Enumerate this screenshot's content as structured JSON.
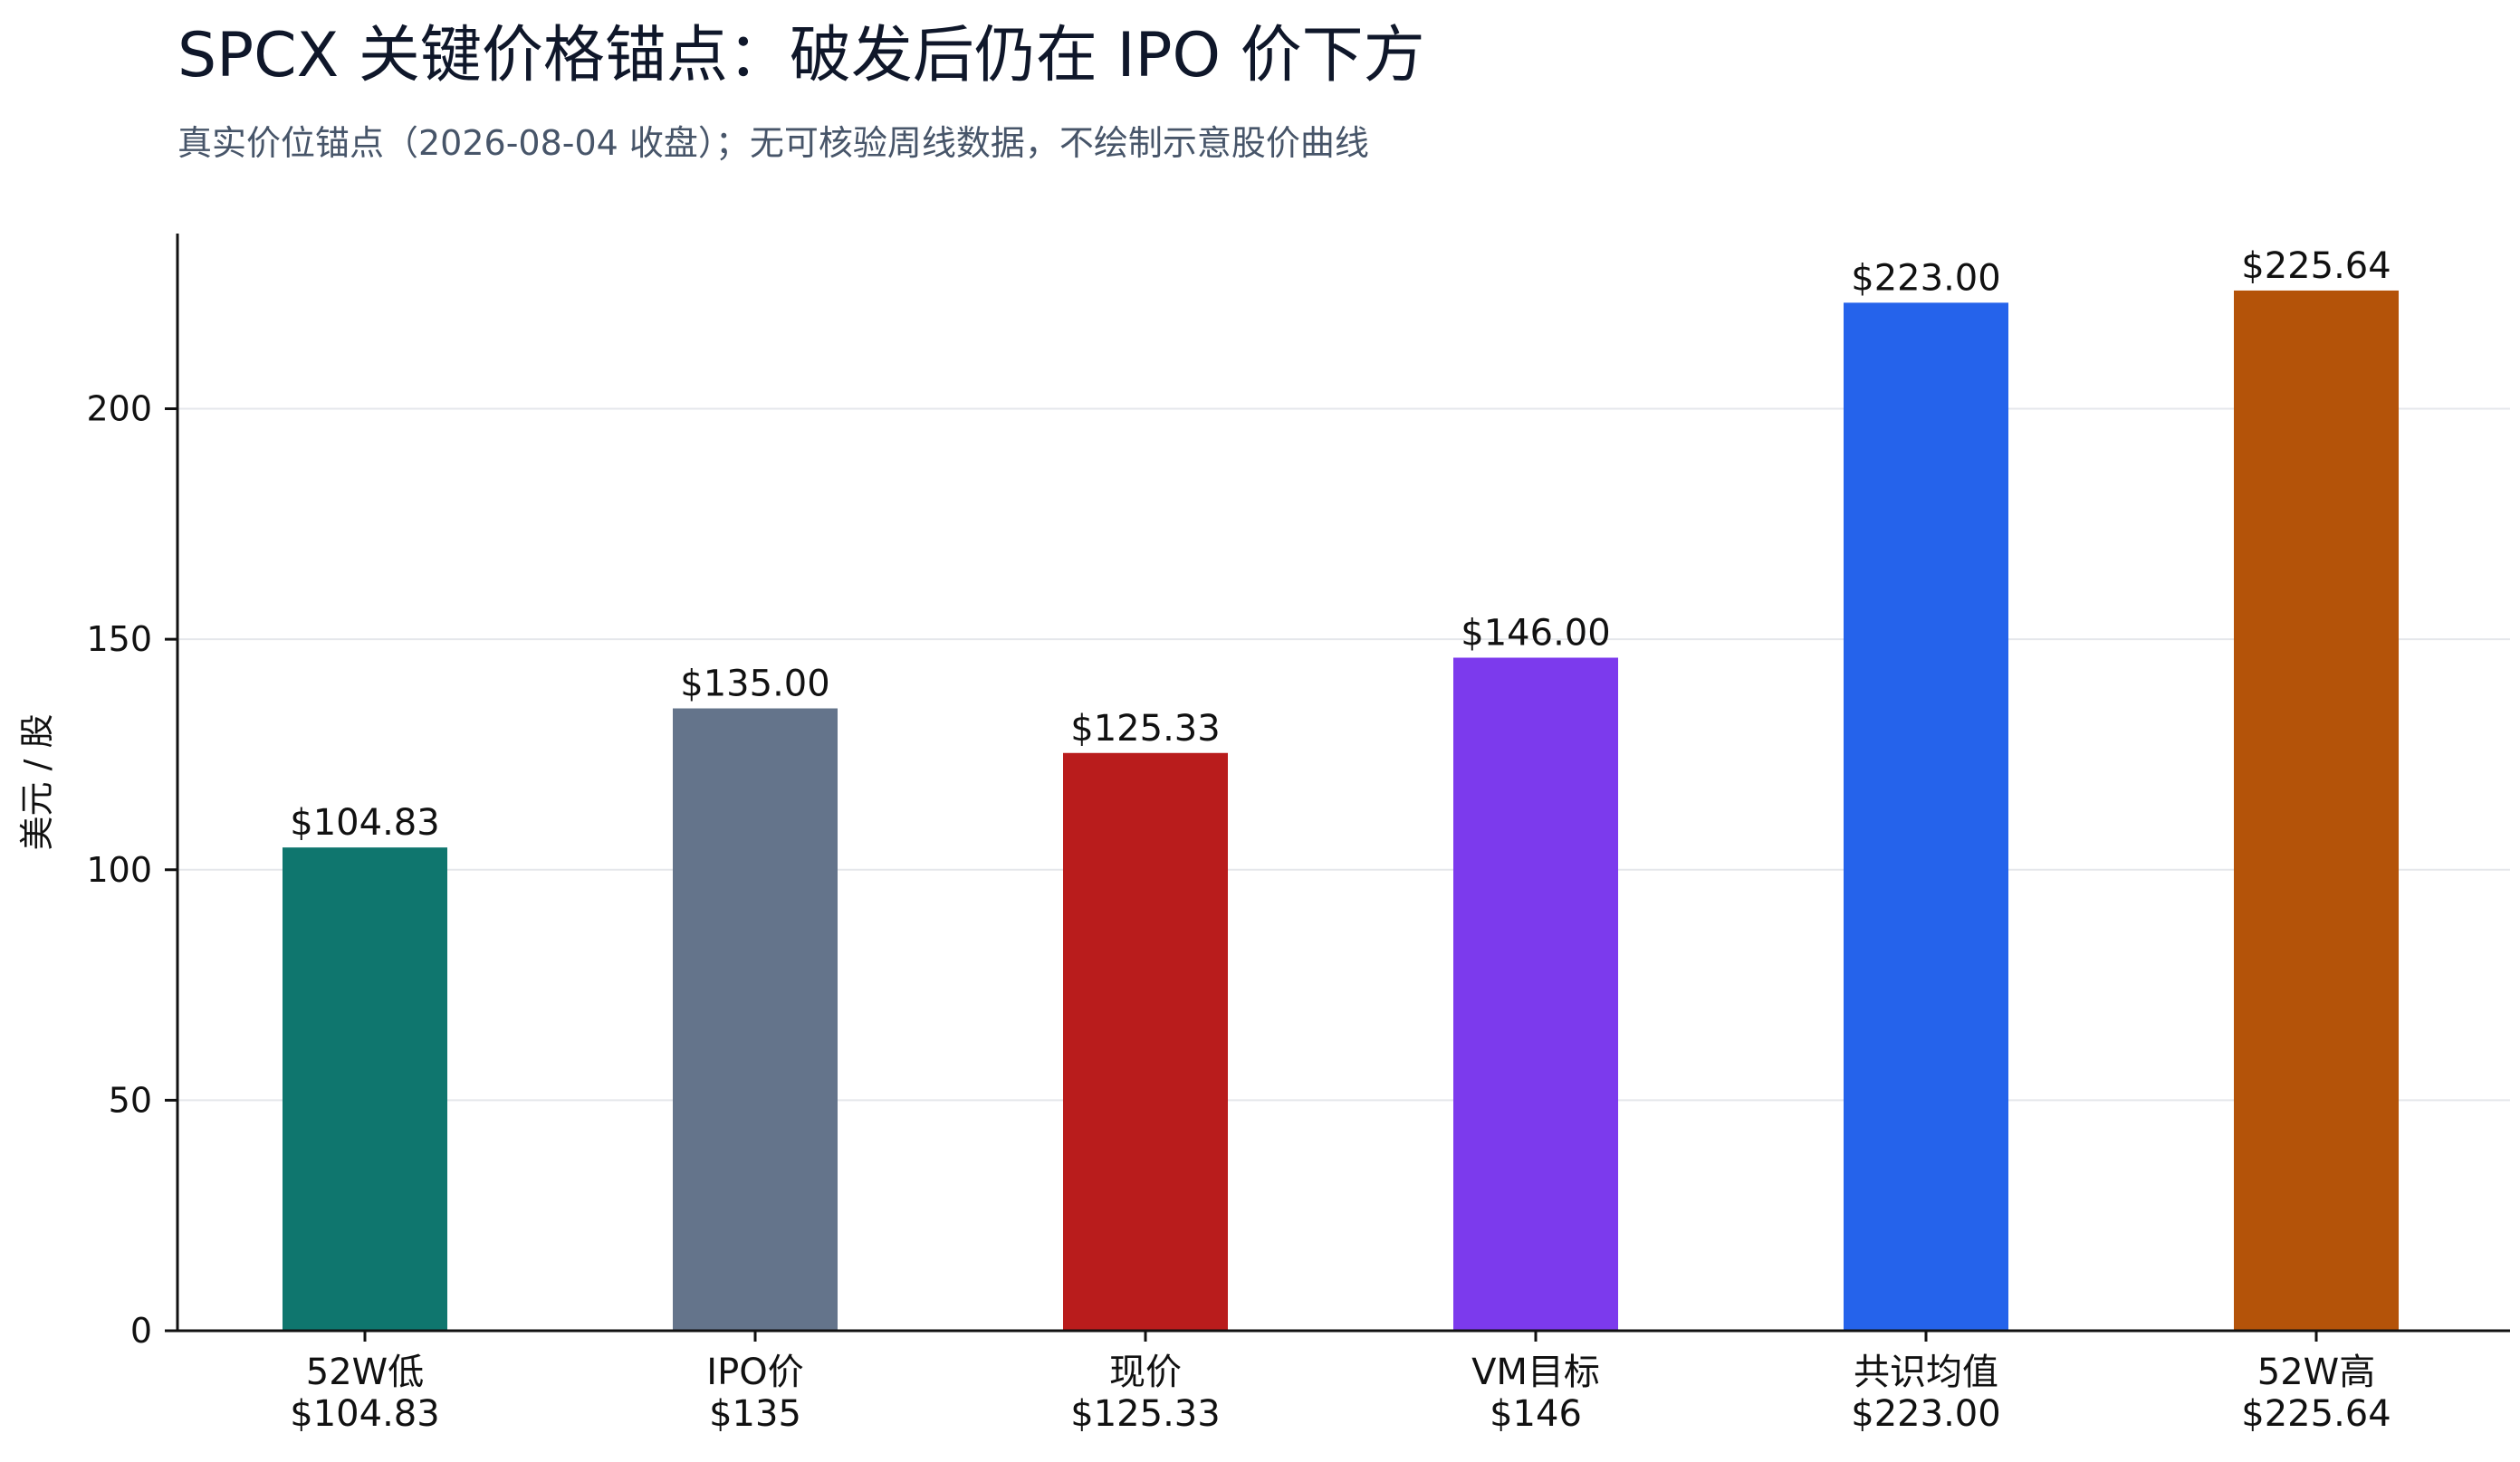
{
  "chart_data": {
    "type": "bar",
    "title": "SPCX 关键价格锚点：破发后仍在 IPO 价下方",
    "subtitle": "真实价位锚点（2026-08-04 收盘）；无可核验周线数据，不绘制示意股价曲线",
    "xlabel": "",
    "ylabel": "美元 / 股",
    "ylim": [
      0,
      238
    ],
    "yticks": [
      0,
      50,
      100,
      150,
      200
    ],
    "grid": true,
    "legend": "none",
    "categories": [
      {
        "name": "52W低",
        "sub": "$104.83"
      },
      {
        "name": "IPO价",
        "sub": "$135"
      },
      {
        "name": "现价",
        "sub": "$125.33"
      },
      {
        "name": "VM目标",
        "sub": "$146"
      },
      {
        "name": "共识均值",
        "sub": "$223.00"
      },
      {
        "name": "52W高",
        "sub": "$225.64"
      }
    ],
    "values": [
      104.83,
      135.0,
      125.33,
      146.0,
      223.0,
      225.64
    ],
    "value_labels": [
      "$104.83",
      "$135.00",
      "$125.33",
      "$146.00",
      "$223.00",
      "$225.64"
    ],
    "colors": [
      "#0f766e",
      "#64748b",
      "#b91c1c",
      "#7c3aed",
      "#2563eb",
      "#b45309"
    ]
  }
}
